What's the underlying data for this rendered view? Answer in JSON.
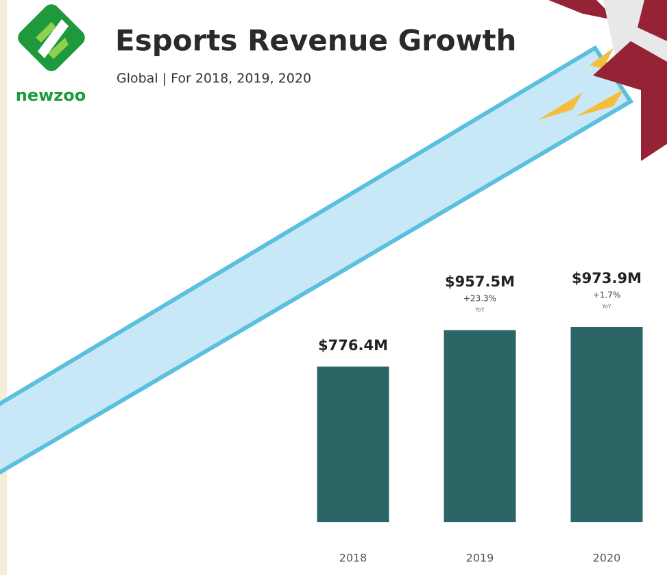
{
  "logo": "newzoo",
  "chart_data": {
    "type": "bar",
    "title": "Esports Revenue Growth",
    "subtitle": "Global | For 2018, 2019, 2020",
    "categories": [
      "2018",
      "2019",
      "2020"
    ],
    "values": [
      776.4,
      957.5,
      973.9
    ],
    "value_labels": [
      "$776.4M",
      "$957.5M",
      "$973.9M"
    ],
    "growth_labels": [
      null,
      "+23.3%",
      "+1.7%"
    ],
    "growth_units": [
      null,
      "YoY",
      "YoY"
    ],
    "color": "#2b6566"
  }
}
